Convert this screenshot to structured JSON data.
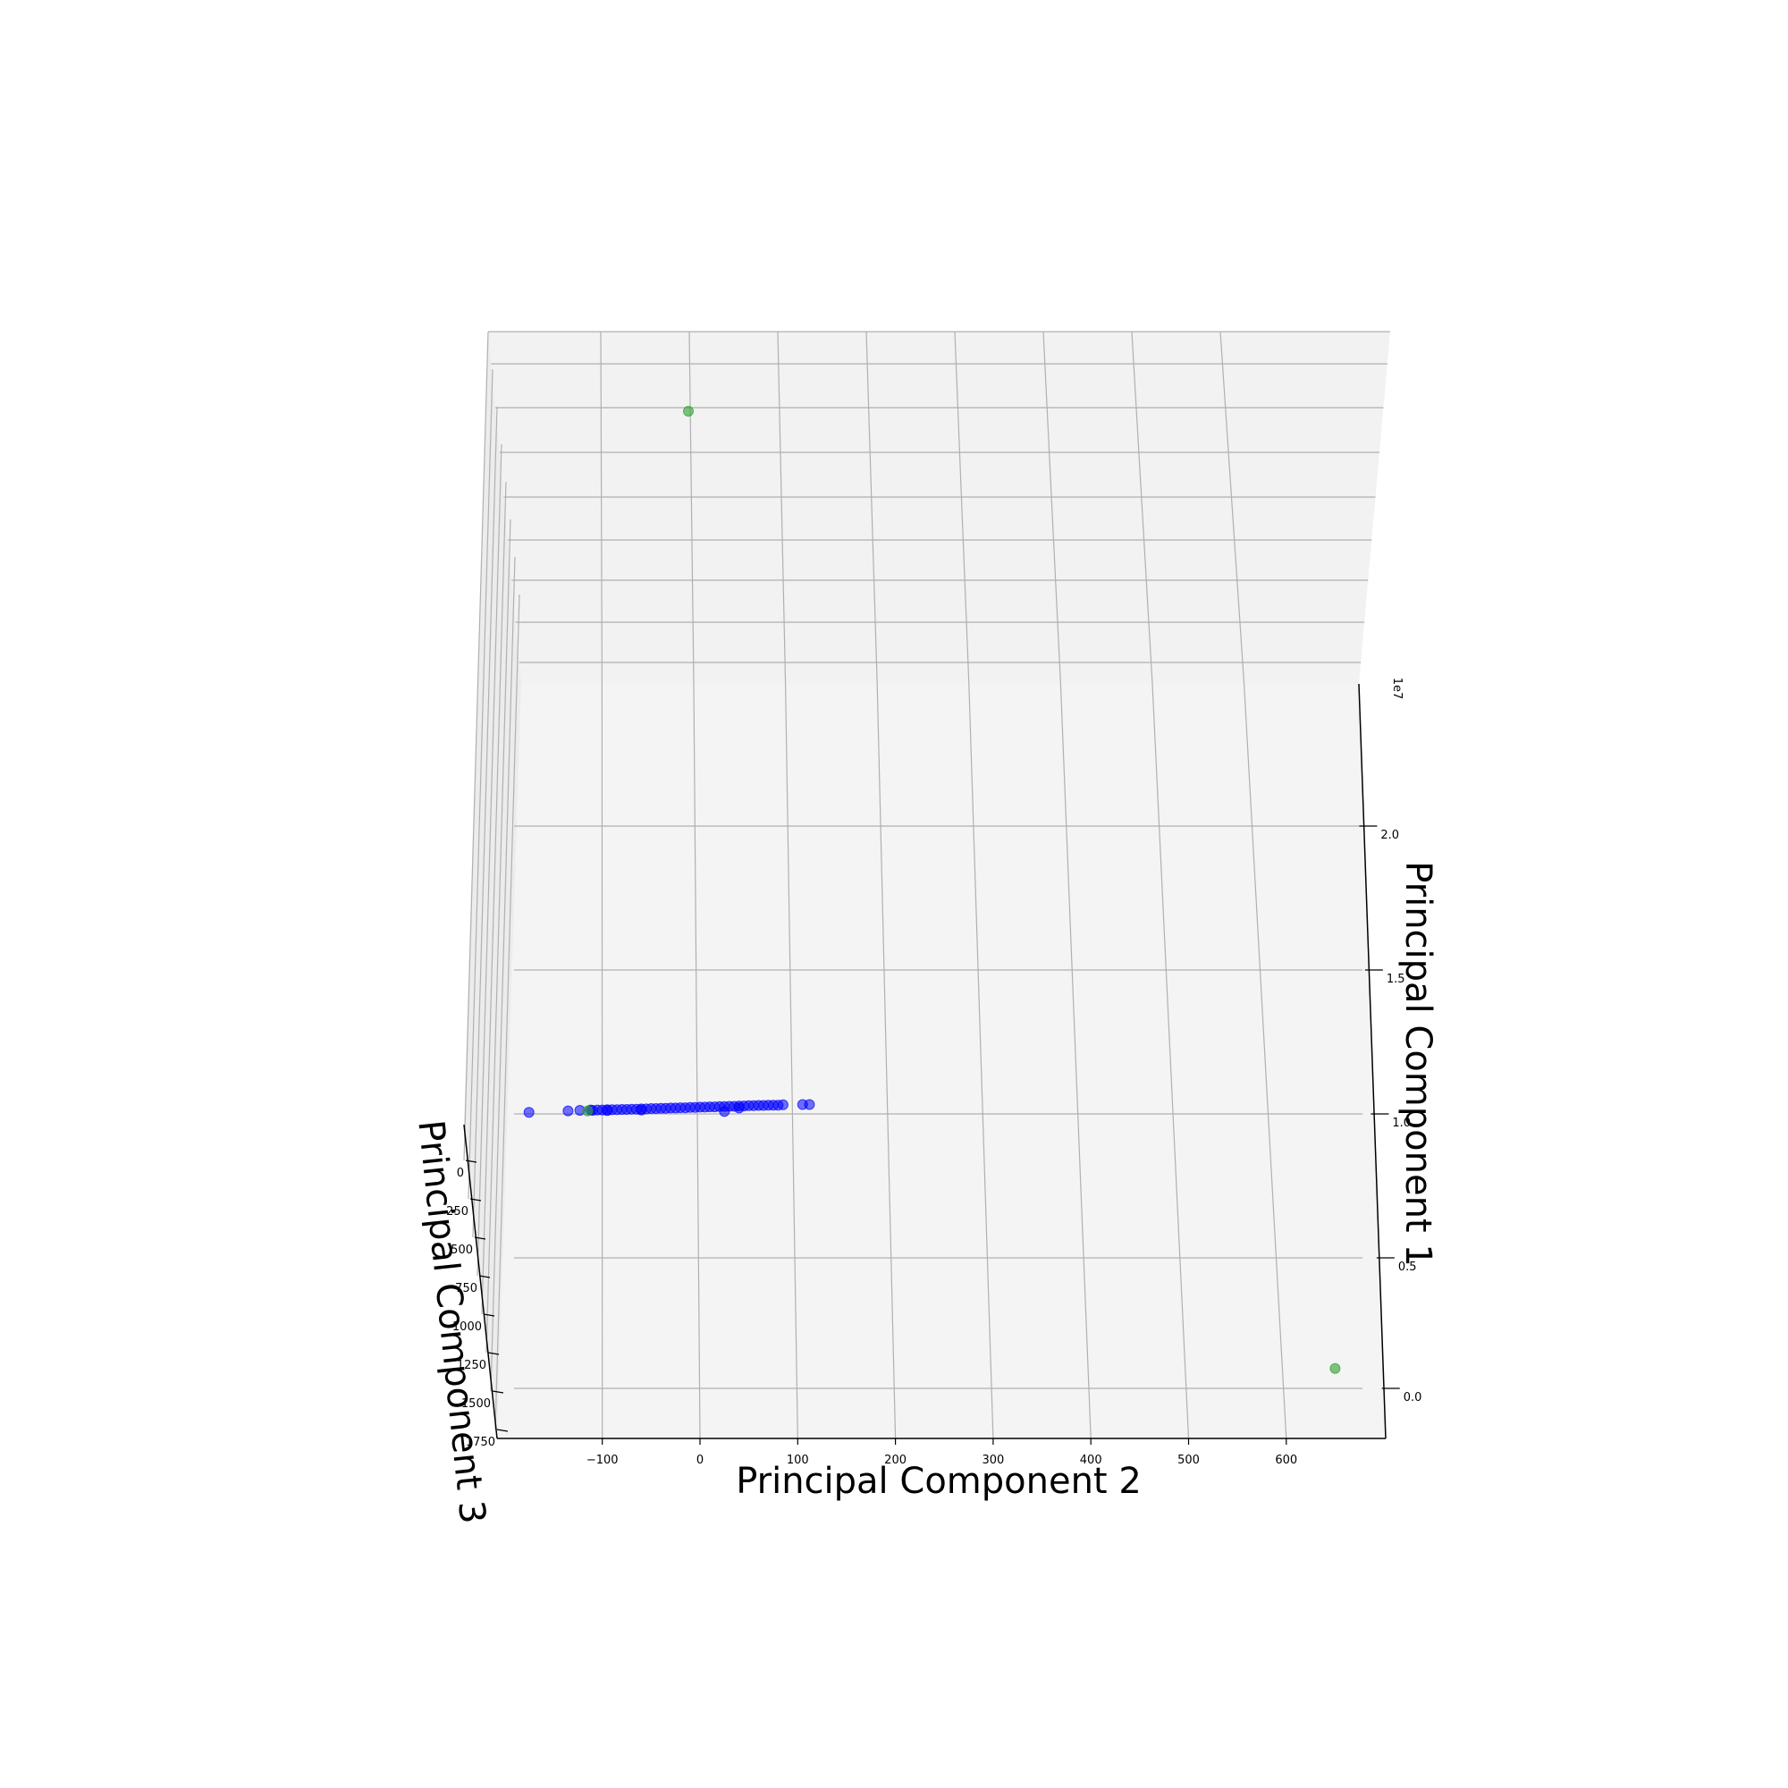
{
  "chart_data": {
    "type": "scatter",
    "projection": "3d",
    "grid": true,
    "axes": {
      "pc1": {
        "label": "Principal Component 1",
        "ticks": [
          "0.0",
          "0.5",
          "1.0",
          "1.5",
          "2.0"
        ],
        "tick_values": [
          0.0,
          0.5,
          1.0,
          1.5,
          2.0
        ],
        "multiplier_label": "1e7"
      },
      "pc2": {
        "label": "Principal Component 2",
        "ticks": [
          "−100",
          "0",
          "100",
          "200",
          "300",
          "400",
          "500",
          "600"
        ],
        "tick_values": [
          -100,
          0,
          100,
          200,
          300,
          400,
          500,
          600
        ],
        "range": [
          -210,
          710
        ]
      },
      "pc3": {
        "label": "Principal Component 3",
        "ticks": [
          "0",
          "250",
          "500",
          "750",
          "1000",
          "1250",
          "1500",
          "1750"
        ],
        "tick_values": [
          0,
          250,
          500,
          750,
          1000,
          1250,
          1500,
          1750
        ],
        "range": [
          -300,
          1750
        ]
      }
    },
    "series": [
      {
        "color": "#0000ff",
        "points": [
          {
            "pc2": -175,
            "pc1": 0.99
          },
          {
            "pc2": -135,
            "pc1": 0.995
          },
          {
            "pc2": -123,
            "pc1": 0.997
          },
          {
            "pc2": -112,
            "pc1": 0.998
          },
          {
            "pc2": -105,
            "pc1": 0.998
          },
          {
            "pc2": -100,
            "pc1": 0.998
          },
          {
            "pc2": -95,
            "pc1": 0.999
          },
          {
            "pc2": -90,
            "pc1": 0.999
          },
          {
            "pc2": -85,
            "pc1": 0.999
          },
          {
            "pc2": -80,
            "pc1": 1.0
          },
          {
            "pc2": -75,
            "pc1": 1.0
          },
          {
            "pc2": -70,
            "pc1": 1.001
          },
          {
            "pc2": -65,
            "pc1": 1.001
          },
          {
            "pc2": -60,
            "pc1": 1.002
          },
          {
            "pc2": -55,
            "pc1": 1.002
          },
          {
            "pc2": -50,
            "pc1": 1.003
          },
          {
            "pc2": -45,
            "pc1": 1.003
          },
          {
            "pc2": -40,
            "pc1": 1.004
          },
          {
            "pc2": -35,
            "pc1": 1.004
          },
          {
            "pc2": -30,
            "pc1": 1.005
          },
          {
            "pc2": -25,
            "pc1": 1.005
          },
          {
            "pc2": -20,
            "pc1": 1.006
          },
          {
            "pc2": -15,
            "pc1": 1.006
          },
          {
            "pc2": -10,
            "pc1": 1.007
          },
          {
            "pc2": -5,
            "pc1": 1.007
          },
          {
            "pc2": 0,
            "pc1": 1.008
          },
          {
            "pc2": 5,
            "pc1": 1.008
          },
          {
            "pc2": 10,
            "pc1": 1.009
          },
          {
            "pc2": 15,
            "pc1": 1.009
          },
          {
            "pc2": 20,
            "pc1": 1.01
          },
          {
            "pc2": 25,
            "pc1": 1.01
          },
          {
            "pc2": 30,
            "pc1": 1.011
          },
          {
            "pc2": 35,
            "pc1": 1.011
          },
          {
            "pc2": 40,
            "pc1": 1.012
          },
          {
            "pc2": 45,
            "pc1": 1.012
          },
          {
            "pc2": 50,
            "pc1": 1.013
          },
          {
            "pc2": 55,
            "pc1": 1.013
          },
          {
            "pc2": 60,
            "pc1": 1.014
          },
          {
            "pc2": 65,
            "pc1": 1.014
          },
          {
            "pc2": 70,
            "pc1": 1.015
          },
          {
            "pc2": 75,
            "pc1": 1.015
          },
          {
            "pc2": 80,
            "pc1": 1.015
          },
          {
            "pc2": 85,
            "pc1": 1.016
          },
          {
            "pc2": 105,
            "pc1": 1.017
          },
          {
            "pc2": 112,
            "pc1": 1.017
          },
          {
            "pc2": 25,
            "pc1": 0.993
          },
          {
            "pc2": -95,
            "pc1": 0.996
          },
          {
            "pc2": -110,
            "pc1": 0.997
          },
          {
            "pc2": -60,
            "pc1": 0.998
          },
          {
            "pc2": 40,
            "pc1": 1.005
          }
        ]
      },
      {
        "color": "#2ca02c",
        "points": [
          {
            "pc2": -5,
            "pc1": 2.5
          },
          {
            "pc2": 650,
            "pc1": 0.1
          },
          {
            "pc2": -115,
            "pc1": 0.995
          }
        ]
      }
    ]
  }
}
